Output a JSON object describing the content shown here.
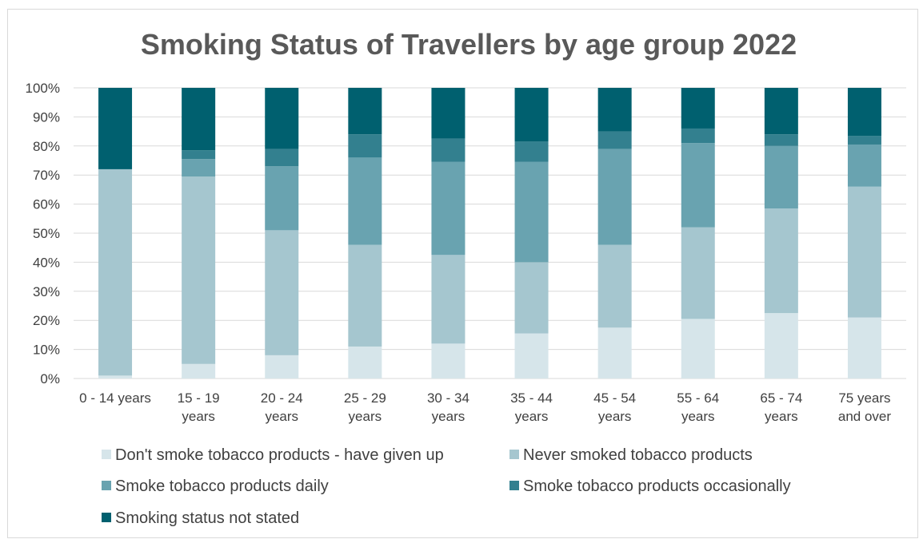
{
  "chart_data": {
    "type": "bar",
    "stacked": "percent",
    "title": "Smoking Status of Travellers by age group 2022",
    "xlabel": "",
    "ylabel": "",
    "ylim": [
      0,
      100
    ],
    "yticks": [
      "0%",
      "10%",
      "20%",
      "30%",
      "40%",
      "50%",
      "60%",
      "70%",
      "80%",
      "90%",
      "100%"
    ],
    "grid": true,
    "legend_position": "bottom",
    "categories": [
      [
        "0 - 14 years"
      ],
      [
        "15 - 19",
        "years"
      ],
      [
        "20 - 24",
        "years"
      ],
      [
        "25 - 29",
        "years"
      ],
      [
        "30 - 34",
        "years"
      ],
      [
        "35 - 44",
        "years"
      ],
      [
        "45 - 54",
        "years"
      ],
      [
        "55 - 64",
        "years"
      ],
      [
        "65 - 74",
        "years"
      ],
      [
        "75 years",
        "and over"
      ]
    ],
    "series": [
      {
        "name": "Don't smoke tobacco products - have given up",
        "color": "#d6e5ea",
        "values": [
          1,
          5,
          8,
          11,
          12,
          15.5,
          17.5,
          20.5,
          22.5,
          21
        ]
      },
      {
        "name": "Never smoked tobacco products",
        "color": "#a5c6cf",
        "values": [
          71,
          64.5,
          43,
          35,
          30.5,
          24.5,
          28.5,
          31.5,
          36,
          45
        ]
      },
      {
        "name": "Smoke tobacco products daily",
        "color": "#69a3b0",
        "values": [
          0,
          6,
          22,
          30,
          32,
          34.5,
          33,
          29,
          21.5,
          14.5
        ]
      },
      {
        "name": "Smoke tobacco products occasionally",
        "color": "#33808f",
        "values": [
          0,
          3,
          6,
          8,
          8,
          7,
          6,
          5,
          4,
          3
        ]
      },
      {
        "name": "Smoking status not stated",
        "color": "#00606f",
        "values": [
          28,
          21.5,
          21,
          16,
          17.5,
          18.5,
          15,
          14,
          16,
          16.5
        ]
      }
    ]
  }
}
